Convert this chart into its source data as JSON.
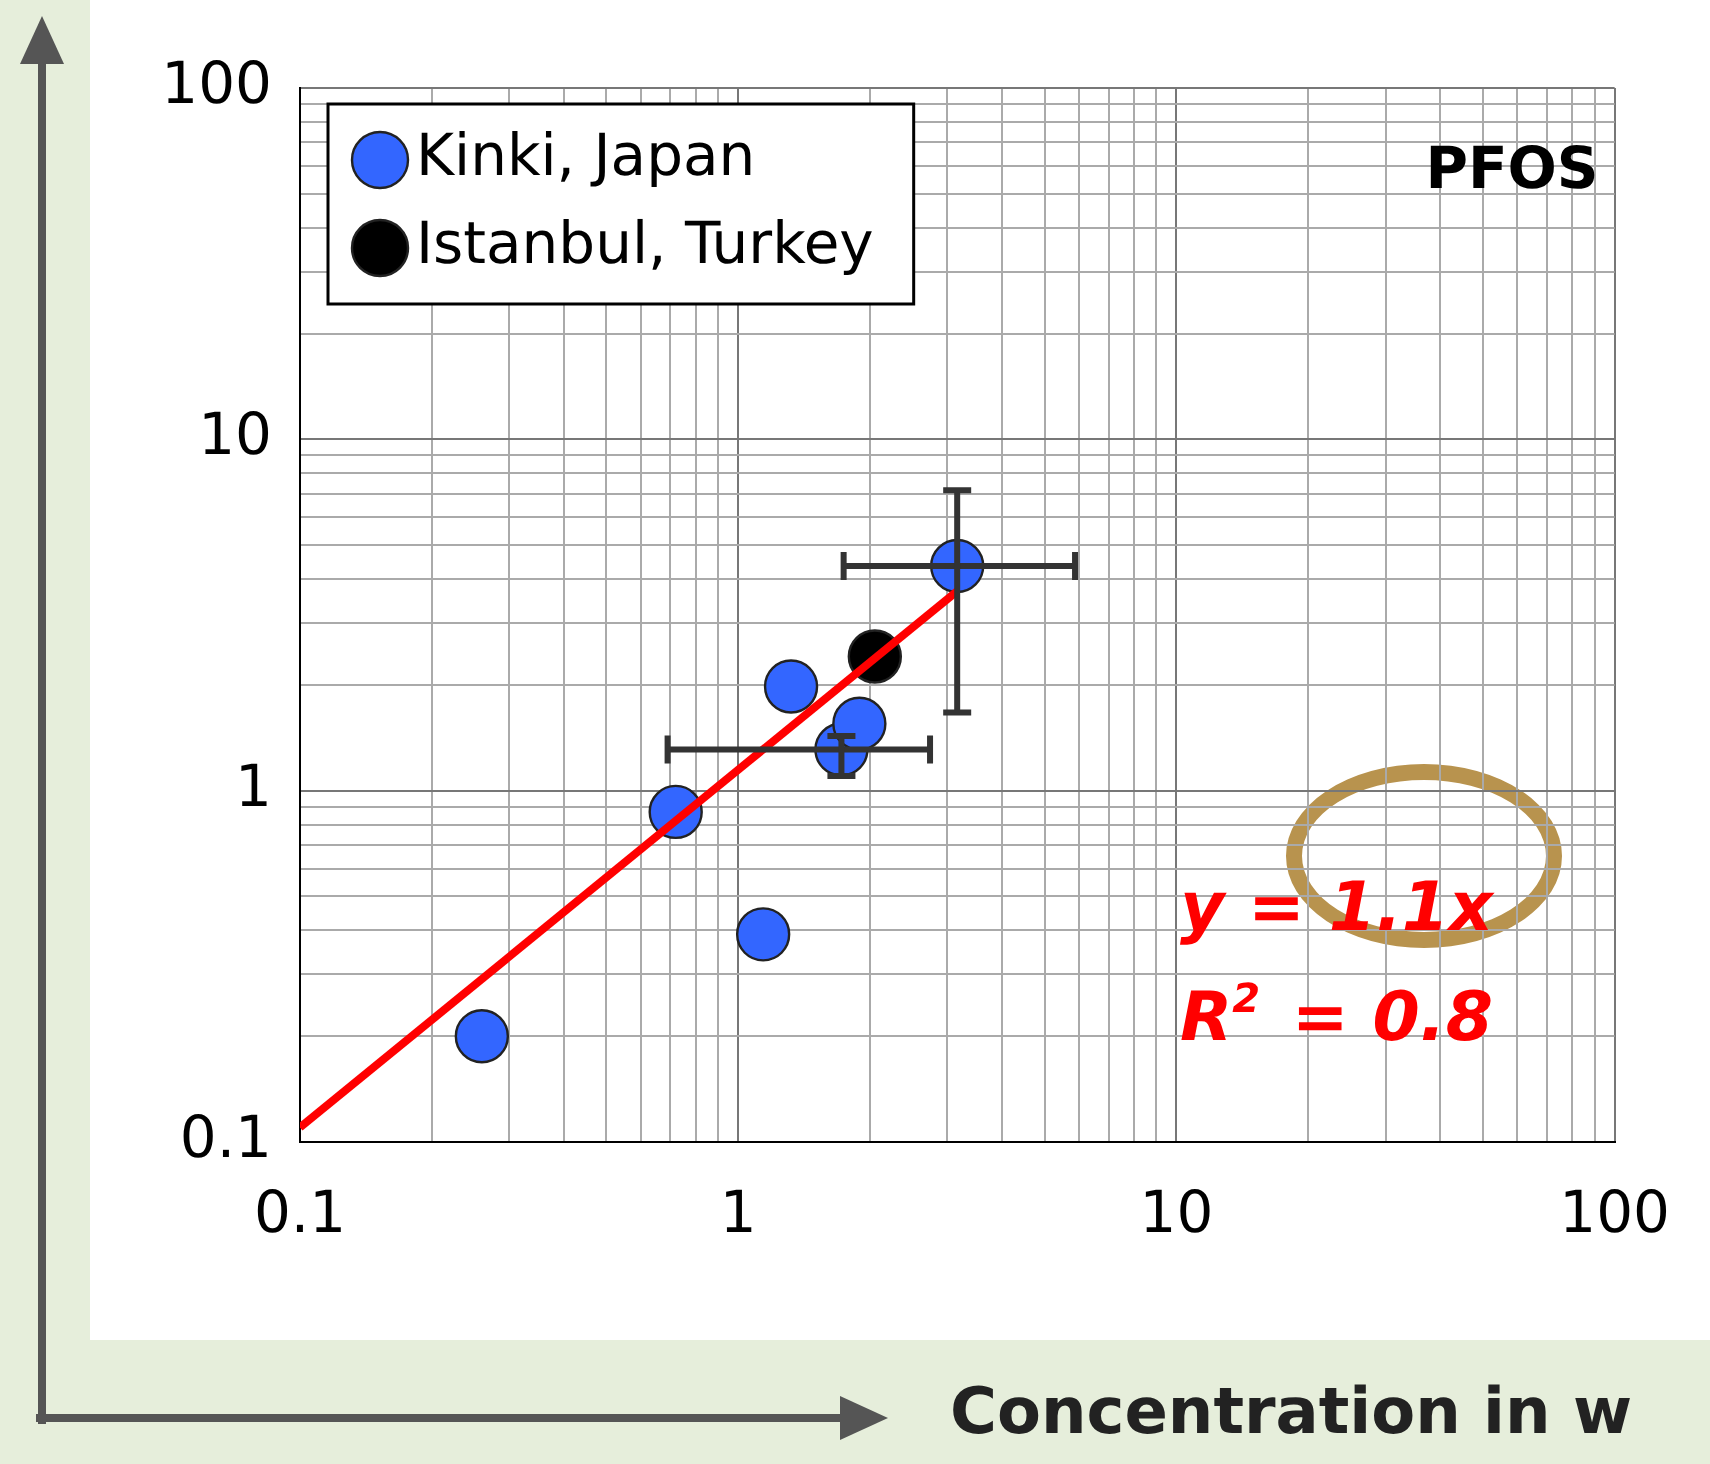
{
  "chart_data": {
    "type": "scatter",
    "xlabel": "Concentration in w",
    "xlim": [
      0.1,
      100
    ],
    "ylim": [
      0.1,
      100
    ],
    "log": "xy",
    "grid": true,
    "legend": "top left",
    "marker": "circle",
    "xticks": [
      0.1,
      {
        "value": 0.2,
        "label": null
      },
      {
        "value": 0.3,
        "label": null
      },
      {
        "value": 0.4,
        "label": null
      },
      {
        "value": 0.5,
        "label": null
      },
      {
        "value": 0.6,
        "label": null
      },
      {
        "value": 0.7,
        "label": null
      },
      {
        "value": 0.8,
        "label": null
      },
      {
        "value": 0.9,
        "label": null
      },
      1,
      {
        "value": 2,
        "label": null
      },
      {
        "value": 3,
        "label": null
      },
      {
        "value": 4,
        "label": null
      },
      {
        "value": 5,
        "label": null
      },
      {
        "value": 6,
        "label": null
      },
      {
        "value": 7,
        "label": null
      },
      {
        "value": 8,
        "label": null
      },
      {
        "value": 9,
        "label": null
      },
      10,
      {
        "value": 20,
        "label": null
      },
      {
        "value": 30,
        "label": null
      },
      {
        "value": 40,
        "label": null
      },
      {
        "value": 50,
        "label": null
      },
      {
        "value": 60,
        "label": null
      },
      {
        "value": 70,
        "label": null
      },
      {
        "value": 80,
        "label": null
      },
      {
        "value": 90,
        "label": null
      },
      100
    ],
    "yticks": [
      0.1,
      {
        "value": 0.2,
        "label": null
      },
      {
        "value": 0.3,
        "label": null
      },
      {
        "value": 0.4,
        "label": null
      },
      {
        "value": 0.5,
        "label": null
      },
      {
        "value": 0.6,
        "label": null
      },
      {
        "value": 0.7,
        "label": null
      },
      {
        "value": 0.8,
        "label": null
      },
      {
        "value": 0.9,
        "label": null
      },
      1,
      {
        "value": 2,
        "label": null
      },
      {
        "value": 3,
        "label": null
      },
      {
        "value": 4,
        "label": null
      },
      {
        "value": 5,
        "label": null
      },
      {
        "value": 6,
        "label": null
      },
      {
        "value": 7,
        "label": null
      },
      {
        "value": 8,
        "label": null
      },
      {
        "value": 9,
        "label": null
      },
      10,
      {
        "value": 20,
        "label": null
      },
      {
        "value": 30,
        "label": null
      },
      {
        "value": 40,
        "label": null
      },
      {
        "value": 50,
        "label": null
      },
      {
        "value": 60,
        "label": null
      },
      {
        "value": 70,
        "label": null
      },
      {
        "value": 80,
        "label": null
      },
      {
        "value": 90,
        "label": null
      },
      100
    ],
    "series": [
      {
        "name": "Kinki, Japan",
        "type": "scatter",
        "color": "#3366ff",
        "x": [
          0.26,
          0.72,
          1.14,
          1.32,
          1.72,
          1.89,
          3.16
        ],
        "values": [
          0.2,
          0.87,
          0.39,
          1.98,
          1.31,
          1.55,
          4.36
        ],
        "xerrors": [
          null,
          null,
          null,
          null,
          [
            0.69,
            2.74
          ],
          null,
          [
            1.74,
            5.87
          ]
        ],
        "errors": [
          null,
          null,
          null,
          null,
          [
            1.1,
            1.43
          ],
          null,
          [
            1.67,
            7.16
          ]
        ]
      },
      {
        "name": "Istanbul, Turkey",
        "type": "scatter",
        "color": "#000000",
        "x": [
          2.05
        ],
        "values": [
          2.41
        ]
      },
      {
        "type": "line",
        "marker": "none",
        "color": "#ff0000",
        "x": [
          0.1,
          3.16
        ],
        "values": [
          0.11,
          3.7
        ]
      }
    ],
    "annotations": [
      "PFOS",
      "y = 1.1x",
      "R$^{2}$ = 0.8"
    ]
  }
}
